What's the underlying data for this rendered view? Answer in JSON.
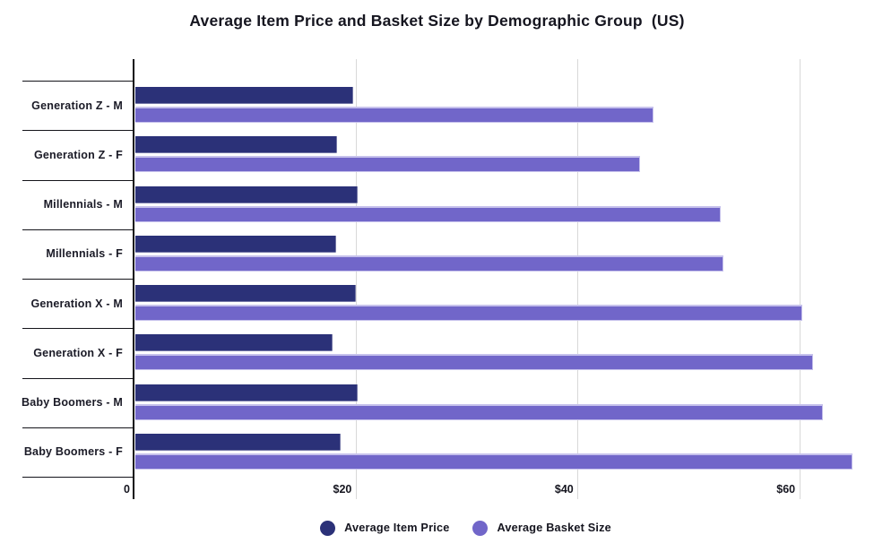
{
  "title": "Average Item Price and Basket Size by Demographic Group  (US)",
  "chart_data": {
    "type": "bar",
    "orientation": "horizontal",
    "title": "Average Item Price and Basket Size by Demographic Group  (US)",
    "categories": [
      "Generation Z - M",
      "Generation Z - F",
      "Millennials - M",
      "Millennials - F",
      "Generation X - M",
      "Generation X - F",
      "Baby Boomers - M",
      "Baby Boomers - F"
    ],
    "series": [
      {
        "name": "Average Item Price",
        "color": "#2b3178",
        "values": [
          19.7,
          18.3,
          20.1,
          18.2,
          20.0,
          17.9,
          20.1,
          18.6
        ]
      },
      {
        "name": "Average Basket Size",
        "color": "#7166c9",
        "values": [
          46.8,
          45.6,
          52.9,
          53.1,
          60.2,
          61.2,
          62.1,
          64.8
        ]
      }
    ],
    "xlim": [
      0,
      66.7
    ],
    "x_ticks": [
      {
        "value": 0,
        "label": "0"
      },
      {
        "value": 20,
        "label": "$20"
      },
      {
        "value": 40,
        "label": "$40"
      },
      {
        "value": 60,
        "label": "$60"
      }
    ],
    "grid": "vertical-gridlines-on",
    "legend_position": "bottom-center"
  },
  "colors": {
    "background": "#ffffff",
    "axis": "#0b0b0f",
    "gridline": "#d8d8d8",
    "text": "#15151f",
    "bar_highlight": "#c6c1ec"
  }
}
